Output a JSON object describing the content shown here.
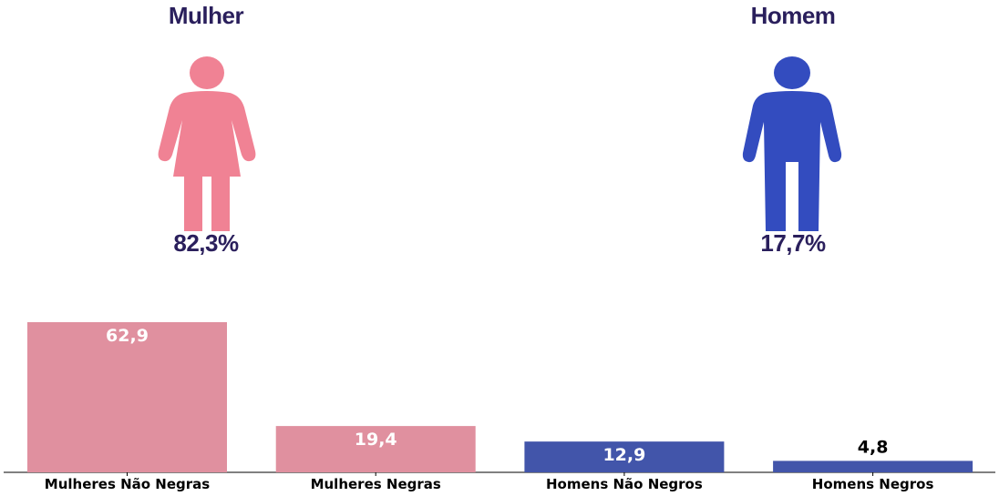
{
  "header": {
    "women": {
      "title": "Mulher",
      "percent": "82,3%",
      "icon": "woman-icon",
      "color": "#f08294"
    },
    "men": {
      "title": "Homem",
      "percent": "17,7%",
      "icon": "man-icon",
      "color": "#334cbf"
    }
  },
  "chart_data": {
    "type": "bar",
    "categories": [
      "Mulheres Não Negras",
      "Mulheres Negras",
      "Homens Não Negros",
      "Homens Negros"
    ],
    "values": [
      62.9,
      19.4,
      12.9,
      4.8
    ],
    "value_labels": [
      "62,9",
      "19,4",
      "12,9",
      "4,8"
    ],
    "colors": [
      "#e0909f",
      "#e0909f",
      "#4255aa",
      "#4255aa"
    ],
    "ylim": [
      0,
      62.9
    ],
    "grid": false,
    "title": "",
    "xlabel": "",
    "ylabel": ""
  }
}
